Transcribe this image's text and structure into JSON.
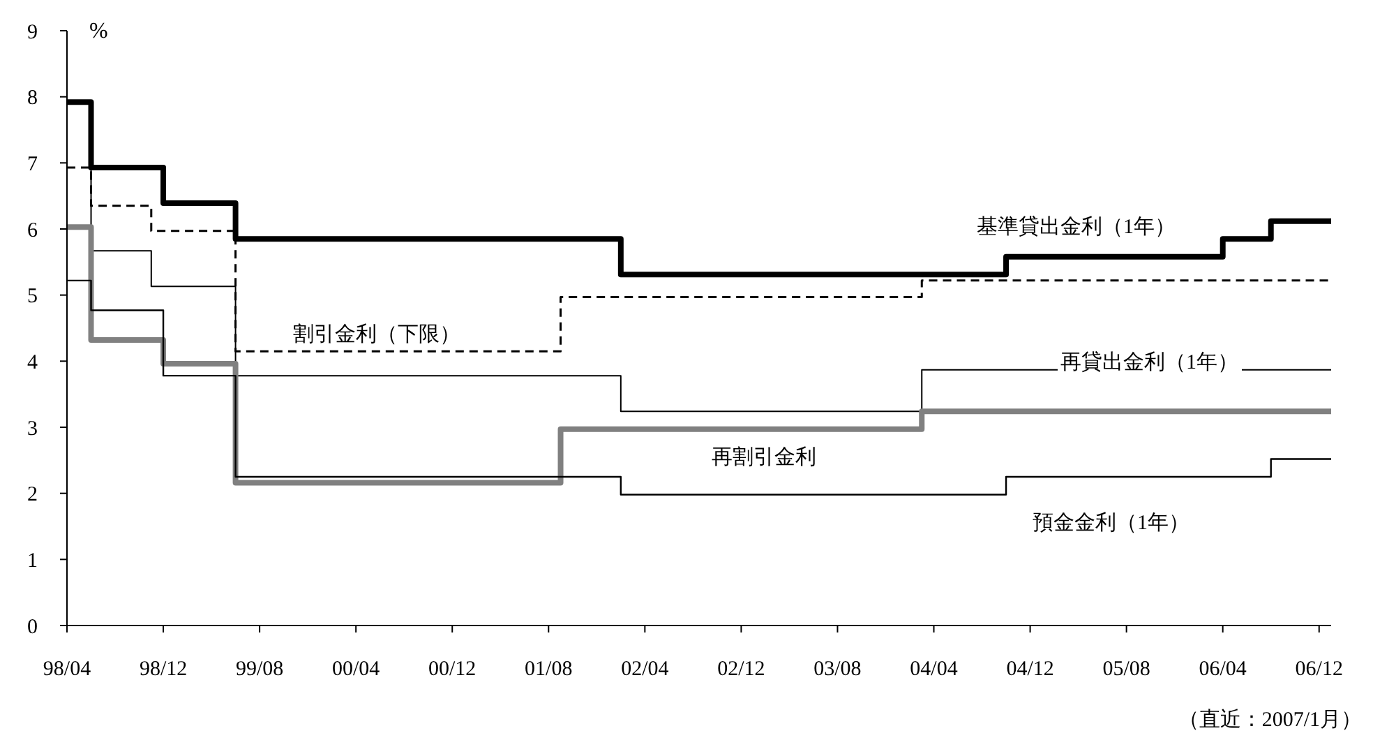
{
  "chart_data": {
    "type": "step",
    "ylabel": "%",
    "xlim": [
      "1998-04",
      "2007-01"
    ],
    "ylim": [
      0,
      9
    ],
    "yticks": [
      0,
      1,
      2,
      3,
      4,
      5,
      6,
      7,
      8,
      9
    ],
    "xticks": [
      {
        "value": "1998-04",
        "label": "98/04"
      },
      {
        "value": "1998-12",
        "label": "98/12"
      },
      {
        "value": "1999-08",
        "label": "99/08"
      },
      {
        "value": "2000-04",
        "label": "00/04"
      },
      {
        "value": "2000-12",
        "label": "00/12"
      },
      {
        "value": "2001-08",
        "label": "01/08"
      },
      {
        "value": "2002-04",
        "label": "02/04"
      },
      {
        "value": "2002-12",
        "label": "02/12"
      },
      {
        "value": "2003-08",
        "label": "03/08"
      },
      {
        "value": "2004-04",
        "label": "04/04"
      },
      {
        "value": "2004-12",
        "label": "04/12"
      },
      {
        "value": "2005-08",
        "label": "05/08"
      },
      {
        "value": "2006-04",
        "label": "06/04"
      },
      {
        "value": "2006-12",
        "label": "06/12"
      }
    ],
    "marker": "none",
    "series": [
      {
        "name": "基準貸出金利（1年）",
        "color": "#000000",
        "x": [
          "1998-04",
          "1998-06",
          "1998-12",
          "1999-06",
          "2002-02",
          "2004-10",
          "2006-04",
          "2006-08",
          "2007-01"
        ],
        "values": [
          7.92,
          6.93,
          6.39,
          5.85,
          5.31,
          5.58,
          5.85,
          6.12,
          6.12
        ]
      },
      {
        "name": "割引金利（下限）",
        "color": "#000000",
        "line_style": "dashed",
        "x": [
          "1998-04",
          "1998-06",
          "1998-11",
          "1999-06",
          "2001-09",
          "2004-03",
          "2007-01"
        ],
        "values": [
          6.93,
          6.35,
          5.97,
          4.15,
          4.97,
          5.22,
          5.22
        ]
      },
      {
        "name": "再貸出金利（1年）",
        "color": "#000000",
        "x": [
          "1998-04",
          "1998-06",
          "1998-11",
          "1999-06",
          "2002-02",
          "2004-03",
          "2007-01"
        ],
        "values": [
          7.92,
          5.67,
          5.13,
          3.78,
          3.24,
          3.87,
          3.87
        ]
      },
      {
        "name": "再割引金利",
        "color": "#808080",
        "x": [
          "1998-04",
          "1998-06",
          "1998-12",
          "1999-06",
          "2001-09",
          "2004-03",
          "2007-01"
        ],
        "values": [
          6.03,
          4.32,
          3.96,
          2.16,
          2.97,
          3.24,
          3.24
        ]
      },
      {
        "name": "預金金利（1年）",
        "color": "#000000",
        "x": [
          "1998-04",
          "1998-06",
          "1998-12",
          "1999-06",
          "2002-02",
          "2004-10",
          "2006-08",
          "2007-01"
        ],
        "values": [
          5.22,
          4.77,
          3.78,
          2.25,
          1.98,
          2.25,
          2.52,
          2.52
        ]
      }
    ],
    "annotations": [
      "（直近：2007/1月）"
    ]
  }
}
